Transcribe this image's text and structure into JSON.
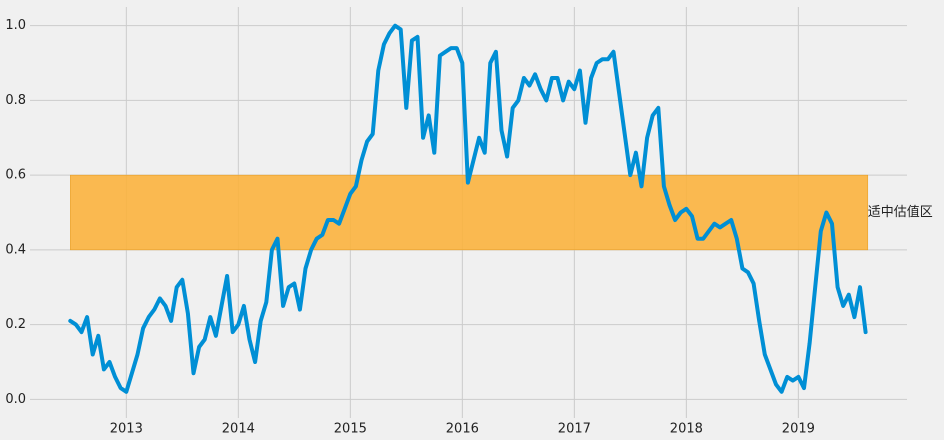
{
  "chart_data": {
    "type": "line",
    "x": [
      2012.5,
      2012.55,
      2012.6,
      2012.65,
      2012.7,
      2012.75,
      2012.8,
      2012.85,
      2012.9,
      2012.95,
      2013.0,
      2013.05,
      2013.1,
      2013.15,
      2013.2,
      2013.25,
      2013.3,
      2013.35,
      2013.4,
      2013.45,
      2013.5,
      2013.55,
      2013.6,
      2013.65,
      2013.7,
      2013.75,
      2013.8,
      2013.85,
      2013.9,
      2013.95,
      2014.0,
      2014.05,
      2014.1,
      2014.15,
      2014.2,
      2014.25,
      2014.3,
      2014.35,
      2014.4,
      2014.45,
      2014.5,
      2014.55,
      2014.6,
      2014.65,
      2014.7,
      2014.75,
      2014.8,
      2014.85,
      2014.9,
      2014.95,
      2015.0,
      2015.05,
      2015.1,
      2015.15,
      2015.2,
      2015.25,
      2015.3,
      2015.35,
      2015.4,
      2015.45,
      2015.5,
      2015.55,
      2015.6,
      2015.65,
      2015.7,
      2015.75,
      2015.8,
      2015.85,
      2015.9,
      2015.95,
      2016.0,
      2016.05,
      2016.1,
      2016.15,
      2016.2,
      2016.25,
      2016.3,
      2016.35,
      2016.4,
      2016.45,
      2016.5,
      2016.55,
      2016.6,
      2016.65,
      2016.7,
      2016.75,
      2016.8,
      2016.85,
      2016.9,
      2016.95,
      2017.0,
      2017.05,
      2017.1,
      2017.15,
      2017.2,
      2017.25,
      2017.3,
      2017.35,
      2017.4,
      2017.45,
      2017.5,
      2017.55,
      2017.6,
      2017.65,
      2017.7,
      2017.75,
      2017.8,
      2017.85,
      2017.9,
      2017.95,
      2018.0,
      2018.05,
      2018.1,
      2018.15,
      2018.2,
      2018.25,
      2018.3,
      2018.35,
      2018.4,
      2018.45,
      2018.5,
      2018.55,
      2018.6,
      2018.65,
      2018.7,
      2018.75,
      2018.8,
      2018.85,
      2018.9,
      2018.95,
      2019.0,
      2019.05,
      2019.1,
      2019.15,
      2019.2,
      2019.25,
      2019.3,
      2019.35,
      2019.4,
      2019.45,
      2019.5,
      2019.55,
      2019.6
    ],
    "series": [
      {
        "color": "#008fd5",
        "values": [
          0.21,
          0.2,
          0.18,
          0.22,
          0.12,
          0.17,
          0.08,
          0.1,
          0.06,
          0.03,
          0.02,
          0.07,
          0.12,
          0.19,
          0.22,
          0.24,
          0.27,
          0.25,
          0.21,
          0.3,
          0.32,
          0.23,
          0.07,
          0.14,
          0.16,
          0.22,
          0.17,
          0.25,
          0.33,
          0.18,
          0.2,
          0.25,
          0.16,
          0.1,
          0.21,
          0.26,
          0.4,
          0.43,
          0.25,
          0.3,
          0.31,
          0.24,
          0.35,
          0.4,
          0.43,
          0.44,
          0.48,
          0.48,
          0.47,
          0.51,
          0.55,
          0.57,
          0.64,
          0.69,
          0.71,
          0.88,
          0.95,
          0.98,
          1.0,
          0.99,
          0.78,
          0.96,
          0.97,
          0.7,
          0.76,
          0.66,
          0.92,
          0.93,
          0.94,
          0.94,
          0.9,
          0.58,
          0.64,
          0.7,
          0.66,
          0.9,
          0.93,
          0.72,
          0.65,
          0.78,
          0.8,
          0.86,
          0.84,
          0.87,
          0.83,
          0.8,
          0.86,
          0.86,
          0.8,
          0.85,
          0.83,
          0.88,
          0.74,
          0.86,
          0.9,
          0.91,
          0.91,
          0.93,
          0.82,
          0.71,
          0.6,
          0.66,
          0.57,
          0.7,
          0.76,
          0.78,
          0.57,
          0.52,
          0.48,
          0.5,
          0.51,
          0.49,
          0.43,
          0.43,
          0.45,
          0.47,
          0.46,
          0.47,
          0.48,
          0.43,
          0.35,
          0.34,
          0.31,
          0.21,
          0.12,
          0.08,
          0.04,
          0.02,
          0.06,
          0.05,
          0.06,
          0.03,
          0.15,
          0.3,
          0.45,
          0.5,
          0.47,
          0.3,
          0.25,
          0.28,
          0.22,
          0.3,
          0.18
        ]
      }
    ],
    "band": {
      "x": [
        2012.5,
        2019.62
      ],
      "y": [
        0.4,
        0.6
      ],
      "color": "#fbb33e",
      "text": "适中估值区"
    },
    "xlim": [
      2012.14,
      2019.97
    ],
    "xticks": [
      2013,
      2014,
      2015,
      2016,
      2017,
      2018,
      2019
    ],
    "ylim": [
      -0.05,
      1.05
    ],
    "yticks": [
      {
        "value": 0,
        "label": "0.0"
      },
      {
        "value": 0.2,
        "label": "0.2"
      },
      {
        "value": 0.4,
        "label": "0.4"
      },
      {
        "value": 0.6,
        "label": "0.6"
      },
      {
        "value": 0.8,
        "label": "0.8"
      },
      {
        "value": 1,
        "label": "1.0"
      }
    ],
    "grid": true
  }
}
